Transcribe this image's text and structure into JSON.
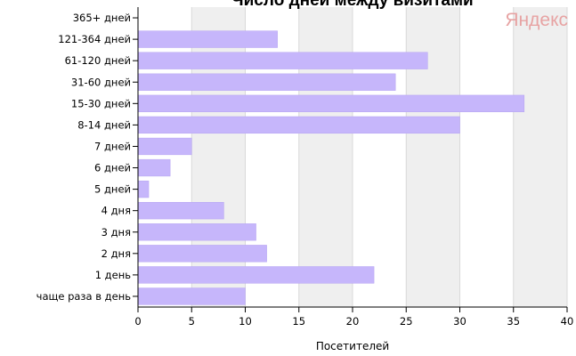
{
  "chart_data": {
    "type": "bar",
    "orientation": "horizontal",
    "title": "Число дней между визитами",
    "xlabel": "Посетителей",
    "ylabel": "",
    "categories": [
      "365+ дней",
      "121-364 дней",
      "61-120 дней",
      "31-60 дней",
      "15-30 дней",
      "8-14 дней",
      "7 дней",
      "6 дней",
      "5 дней",
      "4 дня",
      "3 дня",
      "2 дня",
      "1 день",
      "чаще раза в день"
    ],
    "values": [
      0,
      13,
      27,
      24,
      36,
      30,
      5,
      3,
      1,
      8,
      11,
      12,
      22,
      10
    ],
    "xlim": [
      0,
      40
    ],
    "xticks": [
      "0",
      "5",
      "10",
      "15",
      "20",
      "25",
      "30",
      "35",
      "40"
    ],
    "grid": "alternating vertical bands",
    "colors": {
      "bar": "#c6b6fb",
      "band": "#efefef"
    }
  },
  "brand": "Яндекс"
}
